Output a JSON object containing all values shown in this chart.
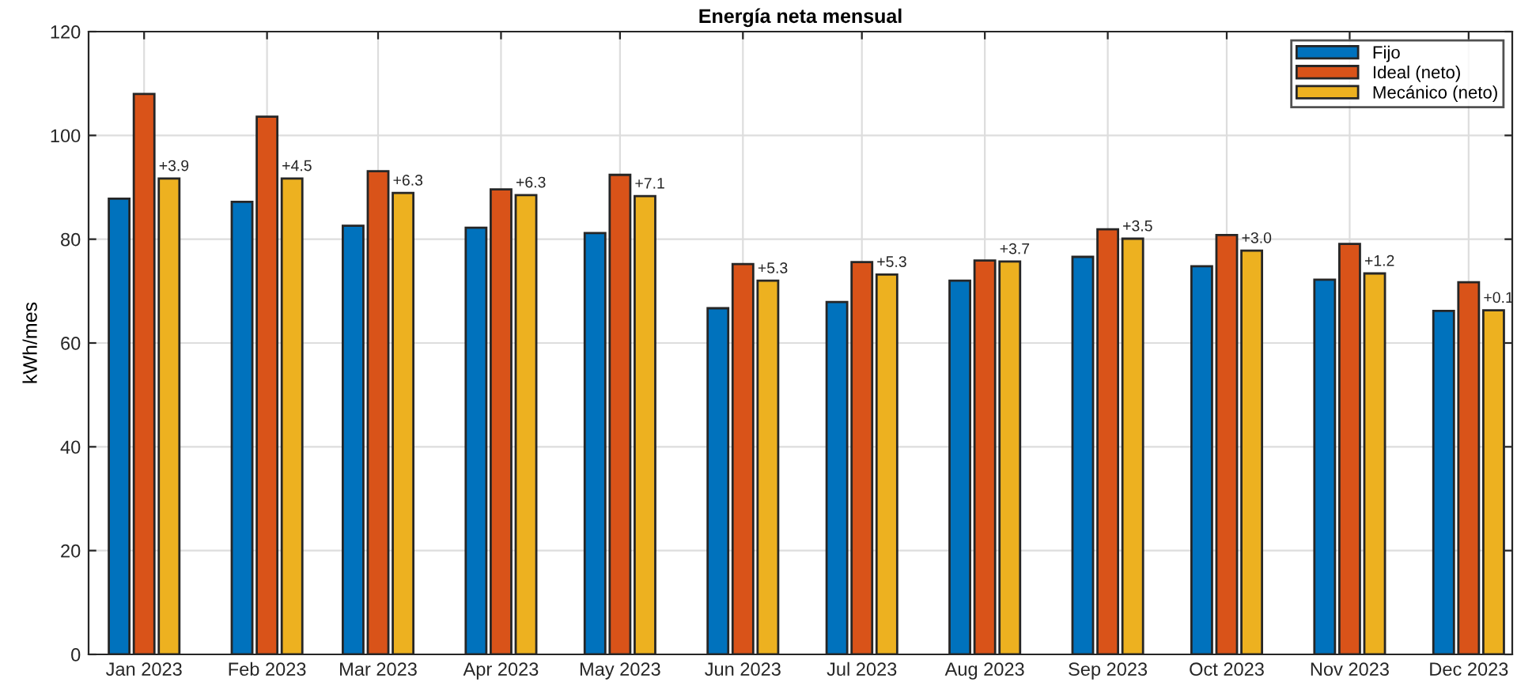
{
  "chart_data": {
    "type": "bar",
    "title": "Energía neta mensual",
    "ylabel": "kWh/mes",
    "x": [
      "2023-01",
      "2023-02",
      "2023-03",
      "2023-04",
      "2023-05",
      "2023-06",
      "2023-07",
      "2023-08",
      "2023-09",
      "2023-10",
      "2023-11",
      "2023-12"
    ],
    "series": [
      {
        "name": "Fijo",
        "color": "#0072bd",
        "values": [
          87.8,
          87.2,
          82.6,
          82.2,
          81.2,
          66.7,
          67.9,
          72.0,
          76.6,
          74.8,
          72.2,
          66.2
        ]
      },
      {
        "name": "Ideal (neto)",
        "color": "#d95319",
        "values": [
          108,
          103.6,
          93.1,
          89.6,
          92.4,
          75.2,
          75.6,
          75.9,
          81.9,
          80.8,
          79.1,
          71.7
        ]
      },
      {
        "name": "Mecánico (neto)",
        "color": "#edb120",
        "values": [
          91.7,
          91.7,
          88.9,
          88.5,
          88.3,
          72.0,
          73.2,
          75.7,
          80.1,
          77.8,
          73.4,
          66.3
        ]
      }
    ],
    "annotations": [
      "+3.9",
      "+4.5",
      "+6.3",
      "+6.3",
      "+7.1",
      "+5.3",
      "+5.3",
      "+3.7",
      "+3.5",
      "+3.0",
      "+1.2",
      "+0.1"
    ],
    "xlim": [
      "2022-12-18",
      "2023-12-12"
    ],
    "xticks": [
      {
        "value": "2023-01",
        "label": "Jan 2023"
      },
      {
        "value": "2023-02",
        "label": "Feb 2023"
      },
      {
        "value": "2023-03",
        "label": "Mar 2023"
      },
      {
        "value": "2023-04",
        "label": "Apr 2023"
      },
      {
        "value": "2023-05",
        "label": "May 2023"
      },
      {
        "value": "2023-06",
        "label": "Jun 2023"
      },
      {
        "value": "2023-07",
        "label": "Jul 2023"
      },
      {
        "value": "2023-08",
        "label": "Aug 2023"
      },
      {
        "value": "2023-09",
        "label": "Sep 2023"
      },
      {
        "value": "2023-10",
        "label": "Oct 2023"
      },
      {
        "value": "2023-11",
        "label": "Nov 2023"
      },
      {
        "value": "2023-12",
        "label": "Dec 2023"
      }
    ],
    "ylim": [
      0,
      120
    ],
    "yticks": [
      0,
      20,
      40,
      60,
      80,
      100,
      120
    ],
    "grid": true,
    "legend": "top right"
  }
}
